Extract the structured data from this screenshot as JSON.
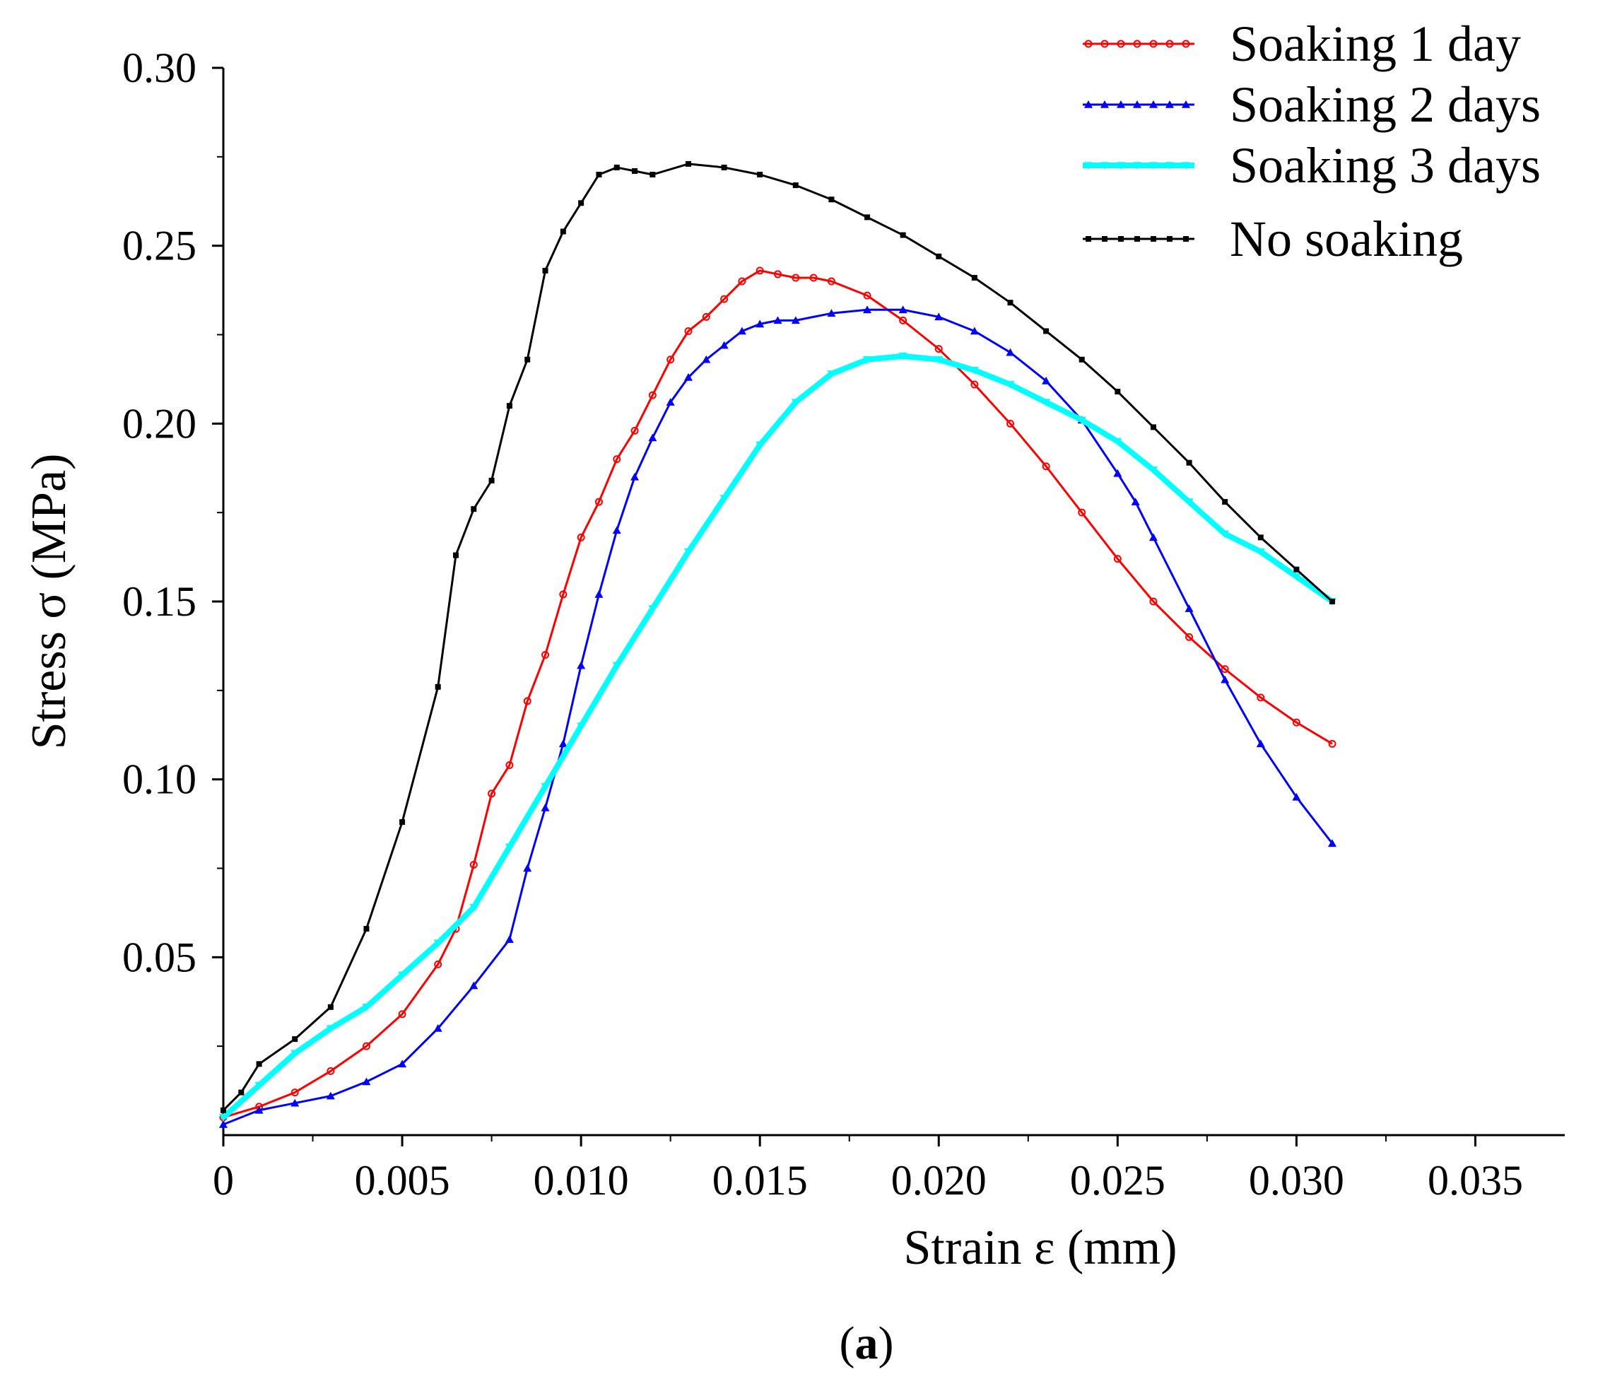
{
  "chart_data": {
    "type": "line",
    "title": "",
    "xlabel": "Strain ε (mm)",
    "ylabel": "Stress σ (MPa)",
    "xlim": [
      0,
      0.0375
    ],
    "ylim": [
      0,
      0.3
    ],
    "x_ticks": [
      0,
      0.005,
      0.01,
      0.015,
      0.02,
      0.025,
      0.03,
      0.035
    ],
    "x_tick_labels": [
      "0",
      "0.005",
      "0.010",
      "0.015",
      "0.020",
      "0.025",
      "0.030",
      "0.035"
    ],
    "y_ticks": [
      0.05,
      0.1,
      0.15,
      0.2,
      0.25,
      0.3
    ],
    "y_tick_labels": [
      "0.05",
      "0.10",
      "0.15",
      "0.20",
      "0.25",
      "0.30"
    ],
    "grid": false,
    "legend_position": "top-right",
    "caption_letter": "a",
    "series": [
      {
        "name": "Soaking 1 day",
        "color": "#ff0000",
        "marker": "circle",
        "x": [
          0,
          0.001,
          0.002,
          0.003,
          0.004,
          0.005,
          0.006,
          0.0065,
          0.007,
          0.0075,
          0.008,
          0.0085,
          0.009,
          0.0095,
          0.01,
          0.0105,
          0.011,
          0.0115,
          0.012,
          0.0125,
          0.013,
          0.0135,
          0.014,
          0.0145,
          0.015,
          0.0155,
          0.016,
          0.0165,
          0.017,
          0.018,
          0.019,
          0.02,
          0.021,
          0.022,
          0.023,
          0.024,
          0.025,
          0.026,
          0.027,
          0.028,
          0.029,
          0.03,
          0.031
        ],
        "y": [
          0.005,
          0.008,
          0.012,
          0.018,
          0.025,
          0.034,
          0.048,
          0.058,
          0.076,
          0.096,
          0.104,
          0.122,
          0.135,
          0.152,
          0.168,
          0.178,
          0.19,
          0.198,
          0.208,
          0.218,
          0.226,
          0.23,
          0.235,
          0.24,
          0.243,
          0.242,
          0.241,
          0.241,
          0.24,
          0.236,
          0.229,
          0.221,
          0.211,
          0.2,
          0.188,
          0.175,
          0.162,
          0.15,
          0.14,
          0.131,
          0.123,
          0.116,
          0.11
        ]
      },
      {
        "name": "Soaking 2 days",
        "color": "#0000ff",
        "marker": "triangle",
        "x": [
          0,
          0.001,
          0.002,
          0.003,
          0.004,
          0.005,
          0.006,
          0.007,
          0.008,
          0.0085,
          0.009,
          0.0095,
          0.01,
          0.0105,
          0.011,
          0.0115,
          0.012,
          0.0125,
          0.013,
          0.0135,
          0.014,
          0.0145,
          0.015,
          0.0155,
          0.016,
          0.017,
          0.018,
          0.019,
          0.02,
          0.021,
          0.022,
          0.023,
          0.024,
          0.025,
          0.0255,
          0.026,
          0.027,
          0.028,
          0.029,
          0.03,
          0.031
        ],
        "y": [
          0.003,
          0.007,
          0.009,
          0.011,
          0.015,
          0.02,
          0.03,
          0.042,
          0.055,
          0.075,
          0.092,
          0.11,
          0.132,
          0.152,
          0.17,
          0.185,
          0.196,
          0.206,
          0.213,
          0.218,
          0.222,
          0.226,
          0.228,
          0.229,
          0.229,
          0.231,
          0.232,
          0.232,
          0.23,
          0.226,
          0.22,
          0.212,
          0.201,
          0.186,
          0.178,
          0.168,
          0.148,
          0.128,
          0.11,
          0.095,
          0.082
        ]
      },
      {
        "name": "Soaking 3 days",
        "color": "#00ffff",
        "marker": "triangle-down",
        "x": [
          0,
          0.001,
          0.002,
          0.003,
          0.004,
          0.005,
          0.006,
          0.007,
          0.008,
          0.009,
          0.01,
          0.011,
          0.012,
          0.013,
          0.014,
          0.015,
          0.016,
          0.017,
          0.018,
          0.019,
          0.02,
          0.021,
          0.022,
          0.023,
          0.024,
          0.025,
          0.026,
          0.027,
          0.028,
          0.029,
          0.03,
          0.031
        ],
        "y": [
          0.005,
          0.014,
          0.023,
          0.03,
          0.036,
          0.045,
          0.054,
          0.064,
          0.081,
          0.098,
          0.115,
          0.132,
          0.148,
          0.164,
          0.179,
          0.194,
          0.206,
          0.214,
          0.218,
          0.219,
          0.218,
          0.215,
          0.211,
          0.206,
          0.201,
          0.195,
          0.187,
          0.178,
          0.169,
          0.164,
          0.157,
          0.15
        ]
      },
      {
        "name": "No soaking",
        "color": "#000000",
        "marker": "square",
        "x": [
          0,
          0.0005,
          0.001,
          0.002,
          0.003,
          0.004,
          0.005,
          0.006,
          0.0065,
          0.007,
          0.0075,
          0.008,
          0.0085,
          0.009,
          0.0095,
          0.01,
          0.0105,
          0.011,
          0.0115,
          0.012,
          0.013,
          0.014,
          0.015,
          0.016,
          0.017,
          0.018,
          0.019,
          0.02,
          0.021,
          0.022,
          0.023,
          0.024,
          0.025,
          0.026,
          0.027,
          0.028,
          0.029,
          0.03,
          0.031
        ],
        "y": [
          0.007,
          0.012,
          0.02,
          0.027,
          0.036,
          0.058,
          0.088,
          0.126,
          0.163,
          0.176,
          0.184,
          0.205,
          0.218,
          0.243,
          0.254,
          0.262,
          0.27,
          0.272,
          0.271,
          0.27,
          0.273,
          0.272,
          0.27,
          0.267,
          0.263,
          0.258,
          0.253,
          0.247,
          0.241,
          0.234,
          0.226,
          0.218,
          0.209,
          0.199,
          0.189,
          0.178,
          0.168,
          0.159,
          0.15
        ]
      }
    ]
  }
}
